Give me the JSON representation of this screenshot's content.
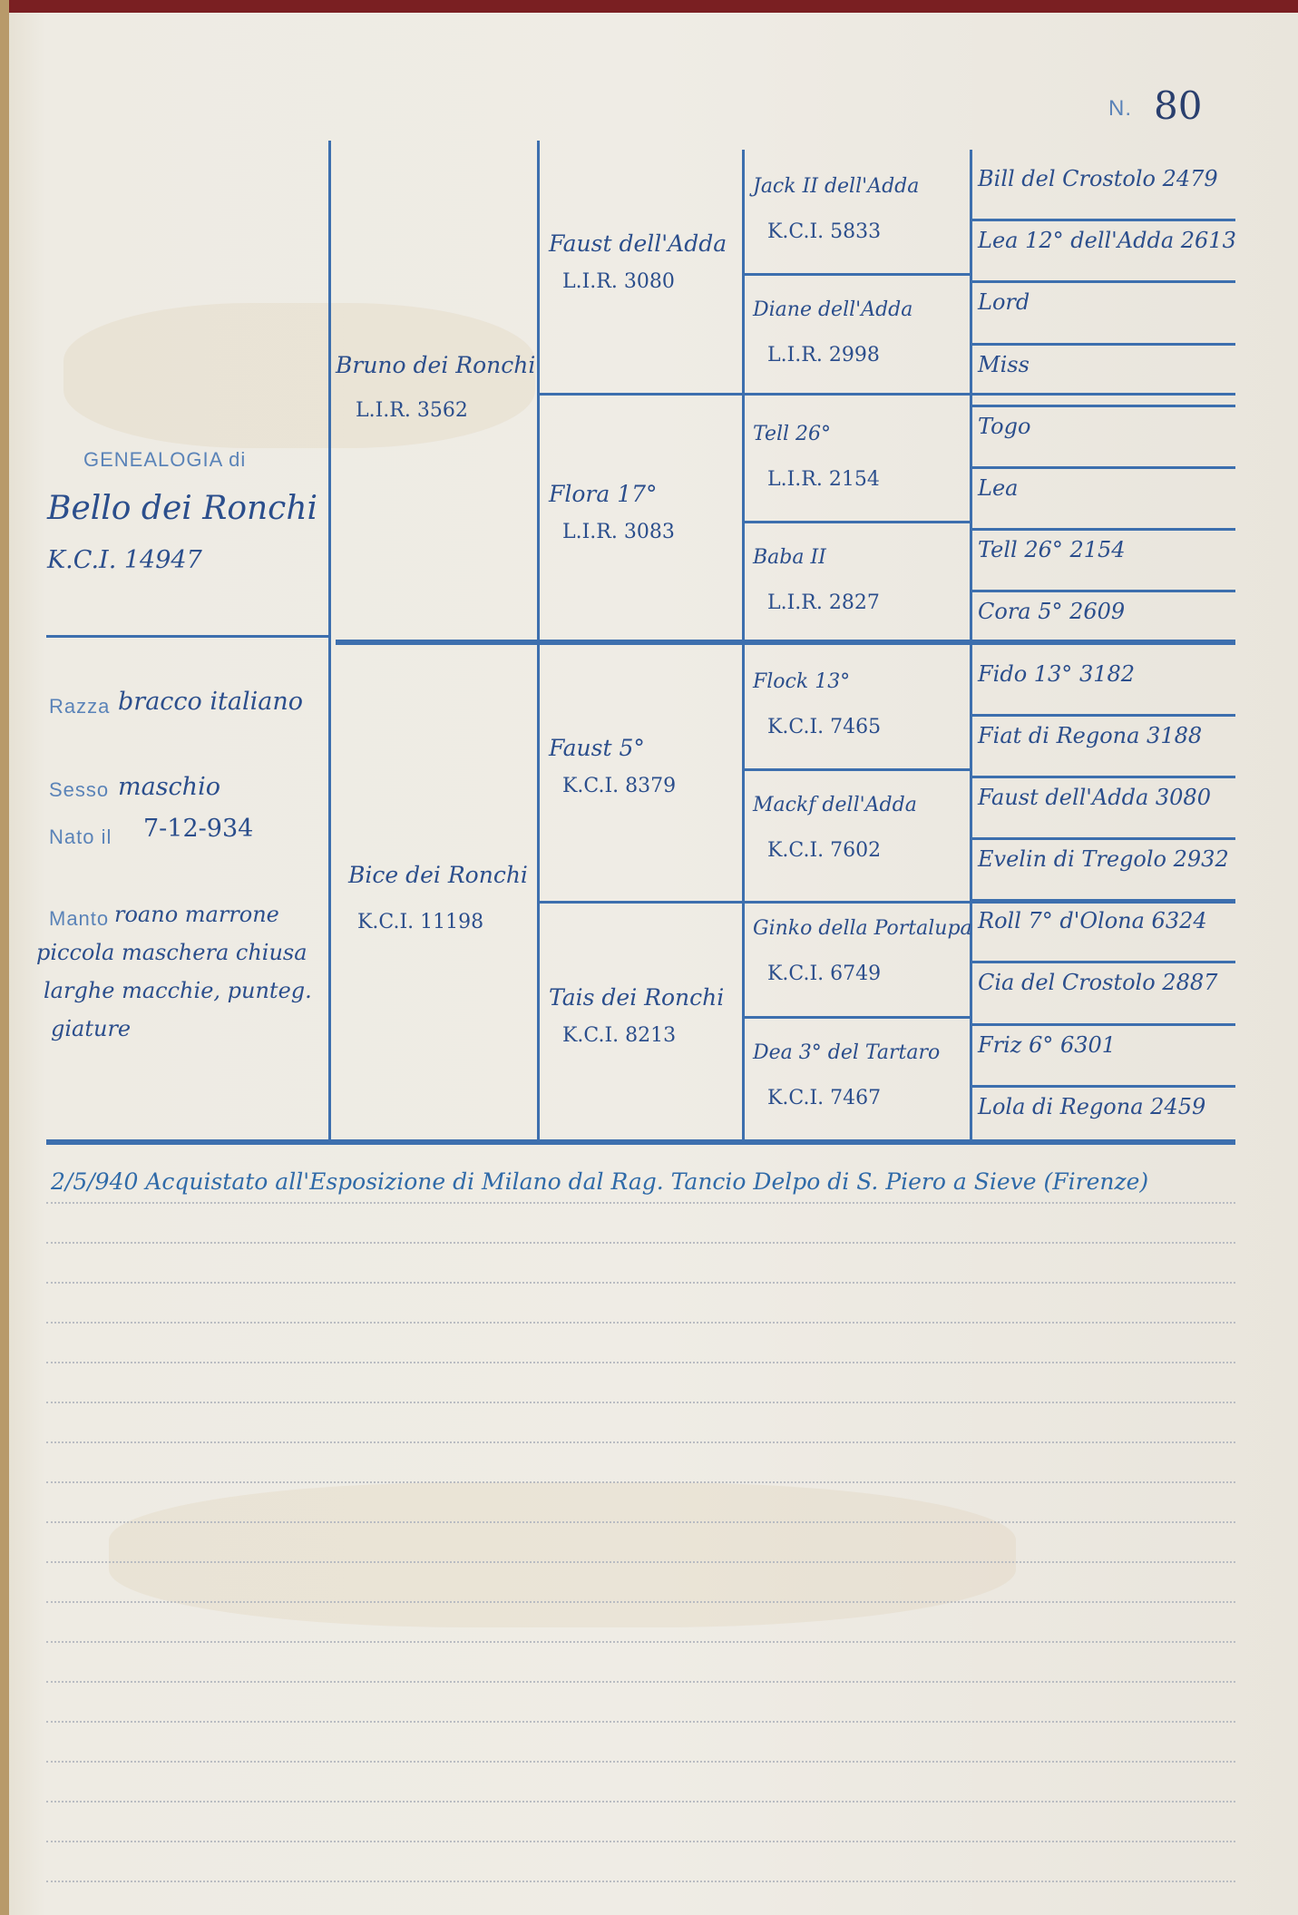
{
  "page_number_label": "N.",
  "page_number": "80",
  "subject": {
    "heading": "GENEALOGIA di",
    "name": "Bello dei Ronchi",
    "registry": "K.C.I. 14947",
    "breed_label": "Razza",
    "breed": "bracco italiano",
    "sex_label": "Sesso",
    "sex": "maschio",
    "born_label": "Nato il",
    "born": "7-12-934",
    "coat_label": "Manto",
    "coat_lines": [
      "roano marrone",
      "piccola maschera chiusa",
      "larghe macchie, punteg.",
      "giature"
    ]
  },
  "parents": [
    {
      "name": "Bruno dei Ronchi",
      "registry": "L.I.R. 3562"
    },
    {
      "name": "Bice dei Ronchi",
      "registry": "K.C.I. 11198"
    }
  ],
  "grandparents": [
    {
      "name": "Faust dell'Adda",
      "registry": "L.I.R. 3080"
    },
    {
      "name": "Flora 17°",
      "registry": "L.I.R. 3083"
    },
    {
      "name": "Faust 5°",
      "registry": "K.C.I. 8379"
    },
    {
      "name": "Tais dei Ronchi",
      "registry": "K.C.I. 8213"
    }
  ],
  "great_grandparents": [
    {
      "name": "Jack II dell'Adda",
      "registry": "K.C.I. 5833"
    },
    {
      "name": "Diane dell'Adda",
      "registry": "L.I.R. 2998"
    },
    {
      "name": "Tell 26°",
      "registry": "L.I.R. 2154"
    },
    {
      "name": "Baba II",
      "registry": "L.I.R. 2827"
    },
    {
      "name": "Flock 13°",
      "registry": "K.C.I. 7465"
    },
    {
      "name": "Mackf dell'Adda",
      "registry": "K.C.I. 7602"
    },
    {
      "name": "Ginko della Portalupa",
      "registry": "K.C.I. 6749"
    },
    {
      "name": "Dea 3° del Tartaro",
      "registry": "K.C.I. 7467"
    }
  ],
  "great_great_grandparents": [
    "Bill del Crostolo 2479",
    "Lea 12° dell'Adda 2613",
    "Lord",
    "Miss",
    "Togo",
    "Lea",
    "Tell 26° 2154",
    "Cora 5° 2609",
    "Fido 13° 3182",
    "Fiat di Regona 3188",
    "Faust dell'Adda 3080",
    "Evelin di Tregolo 2932",
    "Roll 7° d'Olona 6324",
    "Cia del Crostolo 2887",
    "Friz 6° 6301",
    "Lola di Regona 2459"
  ],
  "notes": [
    "2/5/940 Acquistato all'Esposizione di Milano dal Rag. Tancio Delpo di S. Piero a Sieve (Firenze)"
  ],
  "colors": {
    "ink": "#2b4e8c",
    "print": "#3d6fae",
    "paper": "#eeebe3"
  }
}
